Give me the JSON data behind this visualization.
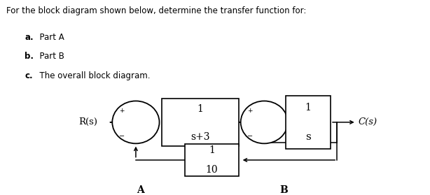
{
  "title_text": "For the block diagram shown below, determine the transfer function for:",
  "item_a_bold": "a.",
  "item_a_text": "  Part A",
  "item_b_bold": "b.",
  "item_b_text": "  Part B",
  "item_c_bold": "c.",
  "item_c_text": "  The overall block diagram.",
  "bg_color": "#ffffff",
  "text_color": "#000000",
  "R_label": "R(s)",
  "C_label": "C(s)",
  "block1_num": "1",
  "block1_den": "s+3",
  "block2_num": "1",
  "block2_den": "s",
  "feedback_num": "1",
  "feedback_den": "10",
  "label_A": "A",
  "label_B": "B",
  "figw": 6.14,
  "figh": 2.79,
  "dpi": 100
}
